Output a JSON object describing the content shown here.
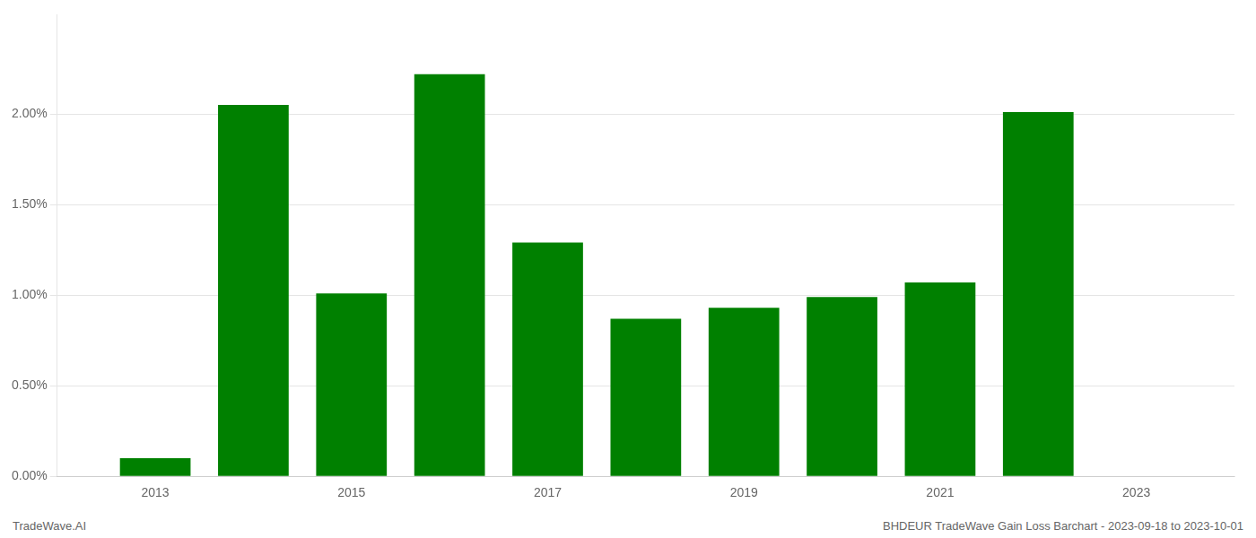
{
  "chart_data": {
    "type": "bar",
    "x": [
      2013,
      2014,
      2015,
      2016,
      2017,
      2018,
      2019,
      2020,
      2021,
      2022
    ],
    "values": [
      0.001,
      0.0205,
      0.0101,
      0.0222,
      0.0129,
      0.0087,
      0.0093,
      0.0099,
      0.0107,
      0.0201
    ],
    "color": "#008000",
    "xlim": [
      2012.0,
      2024.0
    ],
    "xticks": [
      2013,
      2015,
      2017,
      2019,
      2021,
      2023
    ],
    "ylim": [
      0,
      0.0255
    ],
    "yticks": [
      {
        "value": 0.0,
        "label": "0.00%"
      },
      {
        "value": 0.005,
        "label": "0.50%"
      },
      {
        "value": 0.01,
        "label": "1.00%"
      },
      {
        "value": 0.015,
        "label": "1.50%"
      },
      {
        "value": 0.02,
        "label": "2.00%"
      }
    ],
    "grid": true,
    "annotations": [
      "TradeWave.AI",
      "BHDEUR TradeWave Gain Loss Barchart - 2023-09-18 to 2023-10-01"
    ]
  }
}
